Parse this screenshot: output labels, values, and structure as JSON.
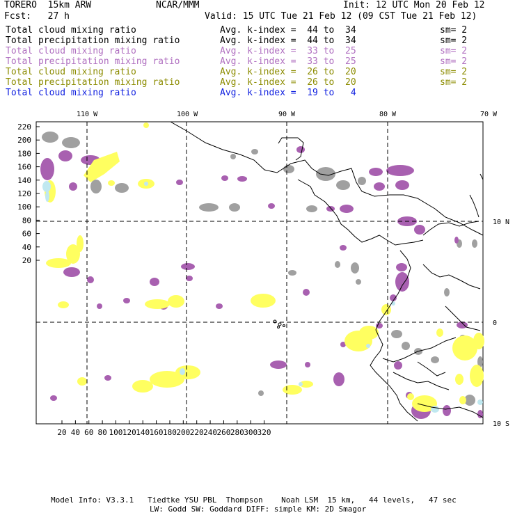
{
  "header": {
    "model": "TORERO  15km ARW",
    "org": "NCAR/MMM",
    "init": "Init: 12 UTC Mon 20 Feb 12",
    "fcst": "Fcst:   27 h",
    "valid": "Valid: 15 UTC Tue 21 Feb 12 (09 CST Tue 21 Feb 12)"
  },
  "legend": [
    {
      "name": "Total cloud mixing ratio",
      "kindex": "Avg. k-index =  44 to  34",
      "sm": "sm= 2",
      "color": "#000000"
    },
    {
      "name": "Total precipitation mixing ratio",
      "kindex": "Avg. k-index =  44 to  34",
      "sm": "sm= 2",
      "color": "#000000"
    },
    {
      "name": "Total cloud mixing ratio",
      "kindex": "Avg. k-index =  33 to  25",
      "sm": "sm= 2",
      "color": "#b070c0"
    },
    {
      "name": "Total precipitation mixing ratio",
      "kindex": "Avg. k-index =  33 to  25",
      "sm": "sm= 2",
      "color": "#b070c0"
    },
    {
      "name": "Total cloud mixing ratio",
      "kindex": "Avg. k-index =  26 to  20",
      "sm": "sm= 2",
      "color": "#8c8c00"
    },
    {
      "name": "Total precipitation mixing ratio",
      "kindex": "Avg. k-index =  26 to  20",
      "sm": "sm= 2",
      "color": "#8c8c00"
    },
    {
      "name": "Total cloud mixing ratio",
      "kindex": "Avg. k-index =  19 to   4",
      "sm": "",
      "color": "#1020e0"
    }
  ],
  "map": {
    "lon_labels": [
      "110 W",
      "100 W",
      "90 W",
      "80 W",
      "70 W"
    ],
    "lat_labels": [
      "10 N",
      "0",
      "10 S"
    ],
    "y_ticks": [
      "220",
      "200",
      "180",
      "160",
      "140",
      "120",
      "100",
      "80",
      "60",
      "40",
      "20"
    ],
    "x_ticks": [
      "20",
      "40",
      "60",
      "80",
      "100",
      "120",
      "140",
      "160",
      "180",
      "200",
      "220",
      "240",
      "260",
      "280",
      "300",
      "320"
    ],
    "colors": {
      "gray": "#a0a0a0",
      "purple": "#a860b0",
      "yellow": "#ffff60",
      "cyan": "#c0e8f0"
    }
  },
  "footer": {
    "line1": "Model Info: V3.3.1   Tiedtke YSU PBL  Thompson    Noah LSM  15 km,   44 levels,   47 sec",
    "line2": "LW: Godd SW: Goddard DIFF: simple KM: 2D Smagor"
  }
}
